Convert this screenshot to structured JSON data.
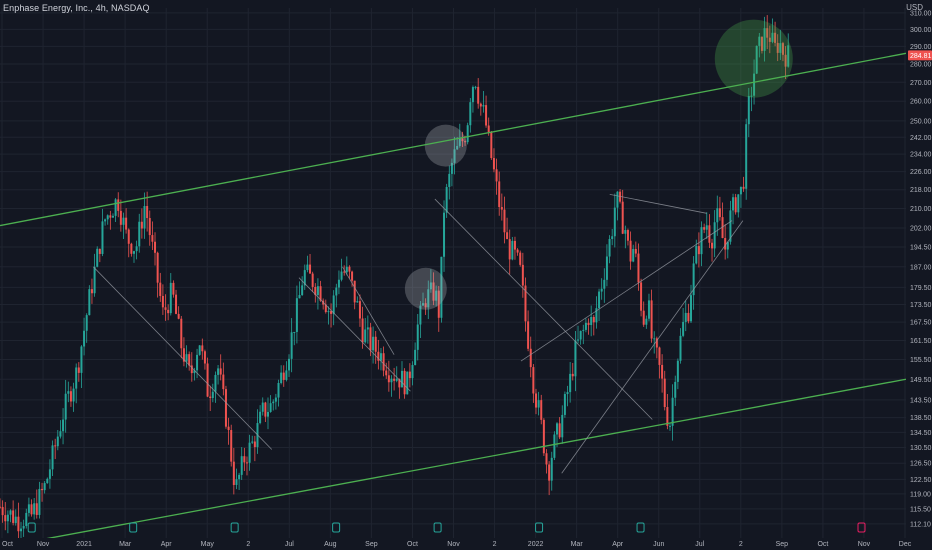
{
  "header": {
    "title": "Enphase Energy, Inc., 4h, NASDAQ",
    "currency": "USD"
  },
  "colors": {
    "background": "#131722",
    "grid": "#1f2430",
    "up": "#26a69a",
    "down": "#ef5350",
    "channel": "#4caf50",
    "trend": "#9598a1",
    "price_label": "#ef5350",
    "earnings_badge": "#26a69a",
    "future_badge": "#e91e63"
  },
  "chart_data": {
    "type": "candlestick",
    "title": "Enphase Energy, Inc., 4h, NASDAQ",
    "currency": "USD",
    "scale": "log",
    "ylim": [
      109,
      313
    ],
    "y_ticks": [
      310.0,
      300.0,
      290.0,
      280.0,
      270.0,
      260.0,
      250.0,
      242.0,
      234.0,
      226.0,
      218.0,
      210.0,
      202.0,
      194.5,
      187.0,
      179.5,
      173.5,
      167.5,
      161.5,
      155.5,
      149.5,
      143.5,
      138.5,
      134.5,
      130.5,
      126.5,
      122.5,
      119.0,
      115.5,
      112.1
    ],
    "y_tick_labels": [
      "310.00",
      "300.00",
      "290.00",
      "280.00",
      "270.00",
      "260.00",
      "250.00",
      "242.00",
      "234.00",
      "226.00",
      "218.00",
      "210.00",
      "202.00",
      "194.50",
      "187.00",
      "179.50",
      "173.50",
      "167.50",
      "161.50",
      "155.50",
      "149.50",
      "143.50",
      "138.50",
      "134.50",
      "130.50",
      "126.50",
      "122.50",
      "119.00",
      "115.50",
      "112.10"
    ],
    "x_ticks": [
      "Oct",
      "Nov",
      "2021",
      "Mar",
      "Apr",
      "May",
      "2",
      "Jul",
      "Aug",
      "Sep",
      "Oct",
      "Nov",
      "2",
      "2022",
      "Mar",
      "Apr",
      "Jun",
      "Jul",
      "2",
      "Sep",
      "Oct",
      "Nov",
      "Dec"
    ],
    "last_price": "284.81",
    "last_price_value": 284.81,
    "earnings_markers": 7,
    "grid": true,
    "series": [
      {
        "kind": "close_path",
        "points": [
          [
            0.0,
            116
          ],
          [
            0.02,
            113
          ],
          [
            0.035,
            114
          ],
          [
            0.05,
            121
          ],
          [
            0.06,
            130
          ],
          [
            0.07,
            140
          ],
          [
            0.085,
            152
          ],
          [
            0.1,
            178
          ],
          [
            0.115,
            205
          ],
          [
            0.13,
            214
          ],
          [
            0.14,
            198
          ],
          [
            0.15,
            194
          ],
          [
            0.16,
            212
          ],
          [
            0.17,
            190
          ],
          [
            0.18,
            170
          ],
          [
            0.19,
            178
          ],
          [
            0.2,
            160
          ],
          [
            0.21,
            150
          ],
          [
            0.22,
            162
          ],
          [
            0.23,
            145
          ],
          [
            0.24,
            154
          ],
          [
            0.25,
            138
          ],
          [
            0.26,
            120
          ],
          [
            0.27,
            128
          ],
          [
            0.28,
            132
          ],
          [
            0.29,
            140
          ],
          [
            0.3,
            142
          ],
          [
            0.31,
            150
          ],
          [
            0.32,
            160
          ],
          [
            0.33,
            175
          ],
          [
            0.335,
            185
          ],
          [
            0.345,
            182
          ],
          [
            0.355,
            178
          ],
          [
            0.365,
            170
          ],
          [
            0.375,
            186
          ],
          [
            0.385,
            184
          ],
          [
            0.395,
            172
          ],
          [
            0.4,
            165
          ],
          [
            0.41,
            160
          ],
          [
            0.42,
            157
          ],
          [
            0.43,
            152
          ],
          [
            0.44,
            150
          ],
          [
            0.45,
            148
          ],
          [
            0.46,
            165
          ],
          [
            0.47,
            176
          ],
          [
            0.48,
            178
          ],
          [
            0.485,
            170
          ],
          [
            0.49,
            210
          ],
          [
            0.5,
            232
          ],
          [
            0.51,
            240
          ],
          [
            0.515,
            246
          ],
          [
            0.52,
            268
          ],
          [
            0.525,
            272
          ],
          [
            0.53,
            258
          ],
          [
            0.535,
            252
          ],
          [
            0.54,
            238
          ],
          [
            0.545,
            226
          ],
          [
            0.55,
            214
          ],
          [
            0.555,
            205
          ],
          [
            0.56,
            195
          ],
          [
            0.57,
            190
          ],
          [
            0.575,
            184
          ],
          [
            0.58,
            168
          ],
          [
            0.585,
            158
          ],
          [
            0.59,
            146
          ],
          [
            0.595,
            140
          ],
          [
            0.6,
            132
          ],
          [
            0.605,
            124
          ],
          [
            0.61,
            130
          ],
          [
            0.62,
            138
          ],
          [
            0.625,
            144
          ],
          [
            0.63,
            150
          ],
          [
            0.635,
            158
          ],
          [
            0.64,
            162
          ],
          [
            0.645,
            165
          ],
          [
            0.65,
            170
          ],
          [
            0.655,
            165
          ],
          [
            0.66,
            176
          ],
          [
            0.665,
            182
          ],
          [
            0.67,
            192
          ],
          [
            0.675,
            200
          ],
          [
            0.68,
            215
          ],
          [
            0.685,
            207
          ],
          [
            0.69,
            202
          ],
          [
            0.695,
            190
          ],
          [
            0.7,
            195
          ],
          [
            0.705,
            180
          ],
          [
            0.71,
            168
          ],
          [
            0.715,
            175
          ],
          [
            0.72,
            160
          ],
          [
            0.725,
            156
          ],
          [
            0.73,
            150
          ],
          [
            0.735,
            140
          ],
          [
            0.74,
            137
          ],
          [
            0.745,
            152
          ],
          [
            0.75,
            160
          ],
          [
            0.755,
            168
          ],
          [
            0.76,
            172
          ],
          [
            0.765,
            185
          ],
          [
            0.77,
            194
          ],
          [
            0.775,
            200
          ],
          [
            0.78,
            204
          ],
          [
            0.785,
            197
          ],
          [
            0.79,
            207
          ],
          [
            0.795,
            203
          ],
          [
            0.8,
            193
          ],
          [
            0.805,
            205
          ],
          [
            0.81,
            211
          ],
          [
            0.815,
            216
          ],
          [
            0.82,
            218
          ],
          [
            0.822,
            234
          ],
          [
            0.826,
            256
          ],
          [
            0.83,
            268
          ],
          [
            0.835,
            285
          ],
          [
            0.84,
            292
          ],
          [
            0.845,
            298
          ],
          [
            0.85,
            296
          ],
          [
            0.855,
            288
          ],
          [
            0.86,
            293
          ],
          [
            0.865,
            286
          ],
          [
            0.87,
            284.81
          ]
        ]
      }
    ],
    "channel_lines": [
      {
        "name": "",
        "p1": [
          "Oct 2020",
          203
        ],
        "p2": [
          "Dec 2022",
          286
        ]
      },
      {
        "name": "",
        "p1": [
          "Oct 2020",
          107
        ],
        "p2": [
          "Dec 2022",
          149.5
        ]
      }
    ],
    "trend_lines": [
      {
        "p1": [
          0.103,
          187
        ],
        "p2": [
          0.3,
          130
        ]
      },
      {
        "p1": [
          0.33,
          183
        ],
        "p2": [
          0.453,
          146
        ]
      },
      {
        "p1": [
          0.378,
          187
        ],
        "p2": [
          0.435,
          157
        ]
      },
      {
        "p1": [
          0.48,
          214
        ],
        "p2": [
          0.72,
          138
        ]
      },
      {
        "p1": [
          0.575,
          155
        ],
        "p2": [
          0.808,
          205
        ]
      },
      {
        "p1": [
          0.62,
          124
        ],
        "p2": [
          0.82,
          205
        ]
      },
      {
        "p1": [
          0.673,
          216
        ],
        "p2": [
          0.78,
          208
        ]
      }
    ],
    "highlight_circles": [
      {
        "at": [
          0.492,
          238
        ],
        "radius": "small",
        "color": "#b2b5be"
      },
      {
        "at": [
          0.47,
          179
        ],
        "radius": "small",
        "color": "#b2b5be"
      },
      {
        "at": [
          0.832,
          283
        ],
        "radius": "large",
        "color": "#4caf50"
      }
    ]
  }
}
